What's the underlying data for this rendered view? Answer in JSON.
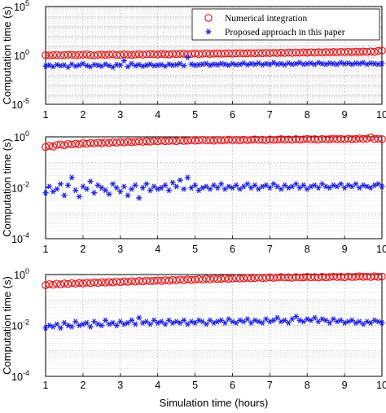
{
  "figure": {
    "xlabel": "Simulation time (hours)"
  },
  "legend": {
    "position": "top-right",
    "entries": [
      {
        "label": "Numerical integration",
        "marker": "circle-open",
        "color": "#e41a1c"
      },
      {
        "label": "Proposed approach in this paper",
        "marker": "asterisk",
        "color": "#1f1fe6"
      }
    ]
  },
  "chart_data": [
    {
      "type": "scatter",
      "scale": "log",
      "ylabel": "Computation time (s)",
      "xlim": [
        1,
        10
      ],
      "ylim_exponents": [
        -5,
        5
      ],
      "yticks": [
        {
          "exp": 5
        },
        {
          "exp": 0
        },
        {
          "exp": -5
        }
      ],
      "xticks": [
        1,
        2,
        3,
        4,
        5,
        6,
        7,
        8,
        9,
        10
      ],
      "grid": true,
      "legend": "top-right",
      "series": [
        {
          "name": "Numerical integration",
          "marker": "circle-open",
          "color": "#e41a1c",
          "x_start": 1,
          "x_end": 10,
          "log10_values": [
            0.02,
            0.0,
            0.03,
            0.05,
            0.0,
            0.04,
            0.06,
            0.08,
            0.02,
            0.05,
            0.07,
            0.1,
            0.04,
            0.0,
            0.06,
            0.09,
            0.05,
            0.08,
            0.11,
            0.03,
            0.06,
            0.12,
            0.09,
            0.05,
            0.1,
            0.13,
            0.07,
            0.11,
            0.14,
            0.12,
            0.09,
            0.15,
            0.12,
            0.1,
            0.16,
            0.13,
            0.15,
            0.18,
            0.12,
            0.16,
            0.19,
            0.14,
            0.17,
            0.2,
            0.15,
            0.18,
            0.21,
            0.17,
            0.2,
            0.22,
            0.18,
            0.21,
            0.23,
            0.2,
            0.22,
            0.24,
            0.21,
            0.25,
            0.22,
            0.26,
            0.23,
            0.27,
            0.24,
            0.28,
            0.25,
            0.29,
            0.26,
            0.3,
            0.27,
            0.31,
            0.28,
            0.32,
            0.29,
            0.33,
            0.3,
            0.34,
            0.31,
            0.35,
            0.32,
            0.36,
            0.33,
            0.37,
            0.34,
            0.38,
            0.35,
            0.39,
            0.36,
            0.4,
            0.37,
            0.45,
            0.5
          ]
        },
        {
          "name": "Proposed approach in this paper",
          "marker": "asterisk",
          "color": "#1f1fe6",
          "x_start": 1,
          "x_end": 10,
          "log10_values": [
            -1.1,
            -1.0,
            -1.15,
            -0.95,
            -1.05,
            -1.0,
            -1.2,
            -0.9,
            -1.1,
            -1.0,
            -0.85,
            -1.05,
            -1.15,
            -0.95,
            -1.0,
            -1.1,
            -0.9,
            -1.05,
            -1.2,
            -0.95,
            -1.0,
            -0.55,
            -1.15,
            -0.85,
            -1.05,
            -0.95,
            -1.1,
            -1.0,
            -0.9,
            -1.05,
            -1.0,
            -0.95,
            -1.1,
            -0.9,
            -1.0,
            -0.95,
            -0.85,
            -1.05,
            -0.2,
            -0.9,
            -1.0,
            -0.95,
            -0.9,
            -0.85,
            -1.0,
            -0.9,
            -0.95,
            -0.85,
            -0.9,
            -1.0,
            -0.85,
            -0.95,
            -0.9,
            -0.8,
            -0.95,
            -0.85,
            -0.9,
            -0.8,
            -0.95,
            -0.85,
            -0.9,
            -0.75,
            -0.9,
            -0.85,
            -0.95,
            -0.8,
            -0.9,
            -0.85,
            -0.75,
            -0.9,
            -0.85,
            -0.8,
            -0.9,
            -0.75,
            -0.85,
            -0.9,
            -0.8,
            -0.85,
            -0.9,
            -0.75,
            -0.85,
            -0.8,
            -0.9,
            -0.8,
            -0.85,
            -0.75,
            -0.9,
            -0.8,
            -0.85,
            -0.9,
            -0.85
          ]
        }
      ]
    },
    {
      "type": "scatter",
      "scale": "log",
      "ylabel": "Computation time (s)",
      "xlim": [
        1,
        10
      ],
      "ylim_exponents": [
        -4,
        0
      ],
      "yticks": [
        {
          "exp": 0
        },
        {
          "exp": -2
        },
        {
          "exp": -4
        }
      ],
      "xticks": [
        1,
        2,
        3,
        4,
        5,
        6,
        7,
        8,
        9,
        10
      ],
      "grid": true,
      "series": [
        {
          "name": "Numerical integration",
          "marker": "circle-open",
          "color": "#e41a1c",
          "x_start": 1,
          "x_end": 10,
          "log10_values": [
            -0.4,
            -0.35,
            -0.38,
            -0.32,
            -0.3,
            -0.33,
            -0.28,
            -0.3,
            -0.27,
            -0.29,
            -0.25,
            -0.27,
            -0.24,
            -0.26,
            -0.23,
            -0.25,
            -0.22,
            -0.24,
            -0.21,
            -0.23,
            -0.2,
            -0.22,
            -0.19,
            -0.21,
            -0.2,
            -0.18,
            -0.2,
            -0.17,
            -0.19,
            -0.16,
            -0.18,
            -0.15,
            -0.17,
            -0.16,
            -0.15,
            -0.17,
            -0.14,
            -0.16,
            -0.15,
            -0.13,
            -0.15,
            -0.14,
            -0.12,
            -0.14,
            -0.13,
            -0.15,
            -0.12,
            -0.14,
            -0.13,
            -0.11,
            -0.13,
            -0.12,
            -0.14,
            -0.11,
            -0.13,
            -0.12,
            -0.1,
            -0.12,
            -0.11,
            -0.13,
            -0.1,
            -0.12,
            -0.11,
            -0.09,
            -0.11,
            -0.1,
            -0.12,
            -0.09,
            -0.11,
            -0.1,
            -0.08,
            -0.1,
            -0.09,
            -0.11,
            -0.08,
            -0.1,
            -0.09,
            -0.07,
            -0.09,
            -0.08,
            -0.1,
            -0.07,
            -0.09,
            -0.08,
            -0.06,
            -0.08,
            -0.07,
            -0.02,
            -0.08,
            -0.07,
            -0.09
          ]
        },
        {
          "name": "Proposed approach in this paper",
          "marker": "asterisk",
          "color": "#1f1fe6",
          "x_start": 1,
          "x_end": 10,
          "log10_values": [
            -2.2,
            -1.95,
            -2.15,
            -2.05,
            -1.85,
            -2.3,
            -1.9,
            -1.6,
            -2.1,
            -2.35,
            -1.95,
            -2.05,
            -1.75,
            -2.2,
            -1.9,
            -2.0,
            -2.1,
            -2.25,
            -1.85,
            -2.0,
            -2.15,
            -1.95,
            -2.3,
            -2.05,
            -1.9,
            -2.4,
            -2.0,
            -1.85,
            -2.1,
            -1.95,
            -2.05,
            -2.0,
            -1.9,
            -2.1,
            -1.8,
            -1.95,
            -1.7,
            -2.05,
            -1.6,
            -2.0,
            -1.9,
            -2.1,
            -2.0,
            -1.95,
            -2.05,
            -1.9,
            -2.0,
            -1.85,
            -2.05,
            -1.95,
            -2.0,
            -1.9,
            -2.05,
            -1.95,
            -1.85,
            -2.0,
            -1.9,
            -2.05,
            -1.95,
            -1.9,
            -2.0,
            -1.85,
            -1.95,
            -2.05,
            -1.9,
            -2.0,
            -1.95,
            -1.85,
            -2.0,
            -1.9,
            -2.05,
            -1.95,
            -1.9,
            -2.0,
            -1.85,
            -1.95,
            -2.0,
            -1.9,
            -1.95,
            -1.85,
            -2.0,
            -1.9,
            -1.95,
            -1.85,
            -2.0,
            -1.9,
            -1.95,
            -2.0,
            -1.9,
            -1.85,
            -1.95
          ]
        }
      ]
    },
    {
      "type": "scatter",
      "scale": "log",
      "ylabel": "Computation time (s)",
      "xlim": [
        1,
        10
      ],
      "ylim_exponents": [
        -4,
        0
      ],
      "yticks": [
        {
          "exp": 0
        },
        {
          "exp": -2
        },
        {
          "exp": -4
        }
      ],
      "xticks": [
        1,
        2,
        3,
        4,
        5,
        6,
        7,
        8,
        9,
        10
      ],
      "grid": true,
      "series": [
        {
          "name": "Numerical integration",
          "marker": "circle-open",
          "color": "#e41a1c",
          "x_start": 1,
          "x_end": 10,
          "log10_values": [
            -0.42,
            -0.38,
            -0.4,
            -0.36,
            -0.39,
            -0.35,
            -0.37,
            -0.34,
            -0.36,
            -0.33,
            -0.35,
            -0.32,
            -0.34,
            -0.31,
            -0.33,
            -0.3,
            -0.32,
            -0.29,
            -0.31,
            -0.28,
            -0.3,
            -0.27,
            -0.29,
            -0.26,
            -0.28,
            -0.25,
            -0.27,
            -0.24,
            -0.26,
            -0.25,
            -0.23,
            -0.25,
            -0.22,
            -0.24,
            -0.21,
            -0.23,
            -0.2,
            -0.22,
            -0.19,
            -0.21,
            -0.2,
            -0.18,
            -0.2,
            -0.17,
            -0.19,
            -0.16,
            -0.18,
            -0.17,
            -0.15,
            -0.17,
            -0.16,
            -0.14,
            -0.16,
            -0.15,
            -0.13,
            -0.15,
            -0.14,
            -0.12,
            -0.14,
            -0.13,
            -0.11,
            -0.13,
            -0.12,
            -0.1,
            -0.12,
            -0.11,
            -0.13,
            -0.1,
            -0.12,
            -0.11,
            -0.09,
            -0.11,
            -0.1,
            -0.12,
            -0.09,
            -0.11,
            -0.1,
            -0.08,
            -0.1,
            -0.09,
            -0.11,
            -0.08,
            -0.1,
            -0.09,
            -0.07,
            -0.09,
            -0.08,
            -0.1,
            -0.07,
            -0.09,
            -0.08
          ]
        },
        {
          "name": "Proposed approach in this paper",
          "marker": "asterisk",
          "color": "#1f1fe6",
          "x_start": 1,
          "x_end": 10,
          "log10_values": [
            -2.1,
            -2.0,
            -2.05,
            -1.95,
            -2.1,
            -1.9,
            -2.0,
            -2.05,
            -1.85,
            -2.0,
            -1.95,
            -1.9,
            -2.05,
            -1.85,
            -1.95,
            -2.0,
            -1.8,
            -1.95,
            -1.9,
            -2.0,
            -1.85,
            -1.95,
            -1.9,
            -1.8,
            -1.95,
            -1.7,
            -1.9,
            -1.85,
            -1.95,
            -1.8,
            -1.9,
            -1.85,
            -1.95,
            -1.8,
            -1.9,
            -1.85,
            -1.9,
            -1.8,
            -1.95,
            -1.85,
            -1.9,
            -1.8,
            -1.85,
            -1.95,
            -1.8,
            -1.9,
            -1.85,
            -1.8,
            -1.9,
            -1.75,
            -1.85,
            -1.9,
            -1.8,
            -1.85,
            -1.75,
            -1.9,
            -1.8,
            -1.85,
            -1.9,
            -1.75,
            -1.85,
            -1.8,
            -1.7,
            -1.85,
            -1.8,
            -1.9,
            -1.75,
            -1.65,
            -1.8,
            -1.85,
            -1.75,
            -1.8,
            -1.7,
            -1.85,
            -1.75,
            -1.8,
            -1.9,
            -1.75,
            -1.85,
            -1.8,
            -1.9,
            -1.85,
            -1.8,
            -1.9,
            -1.85,
            -1.95,
            -1.85,
            -1.9,
            -1.8,
            -1.85,
            -1.9
          ]
        }
      ]
    }
  ]
}
